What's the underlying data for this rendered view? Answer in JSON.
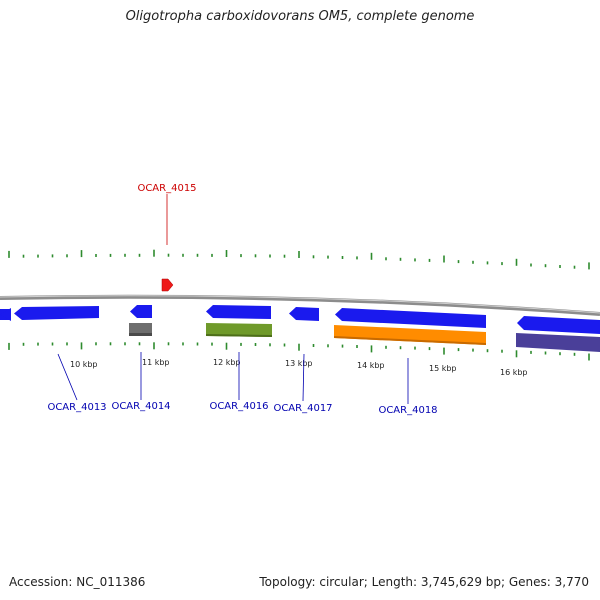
{
  "title": "Oligotropha carboxidovorans OM5, complete genome",
  "footer": {
    "accession": "Accession: NC_011386",
    "summary": "Topology: circular; Length: 3,745,629 bp; Genes: 3,770"
  },
  "colors": {
    "backbone": "#8c8c8c",
    "tick": "#2e8b2e",
    "label_forward": "#cc0000",
    "label_reverse": "#0000b0"
  },
  "scale_labels": [
    "10 kbp",
    "11 kbp",
    "12 kbp",
    "13 kbp",
    "14 kbp",
    "15 kbp",
    "16 kbp"
  ],
  "genes": [
    {
      "name": "OCAR_4013",
      "color": "#1a1aee",
      "shape": "arrow"
    },
    {
      "name": "OCAR_4014",
      "color": "#6e6e6e",
      "shape": "box"
    },
    {
      "name": "OCAR_4015",
      "color": "#ee1a1a",
      "shape": "arrow"
    },
    {
      "name": "OCAR_4016",
      "color": "#6f9a2a",
      "shape": "box"
    },
    {
      "name": "OCAR_4017",
      "color": "#1a1aee",
      "shape": "arrow"
    },
    {
      "name": "OCAR_4018",
      "color": "#ff8c00",
      "shape": "box"
    }
  ]
}
